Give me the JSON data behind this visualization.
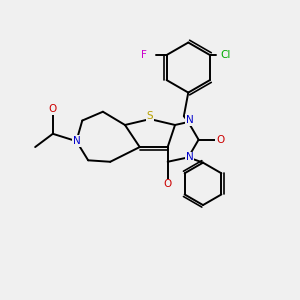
{
  "bg_color": "#f0f0f0",
  "bond_color": "#000000",
  "bond_lw": 1.4,
  "S_color": "#b8a000",
  "N_color": "#0000cc",
  "O_color": "#cc0000",
  "F_color": "#cc00cc",
  "Cl_color": "#00aa00",
  "figsize": [
    3.0,
    3.0
  ],
  "dpi": 100,
  "xlim": [
    0,
    10
  ],
  "ylim": [
    0,
    10
  ]
}
